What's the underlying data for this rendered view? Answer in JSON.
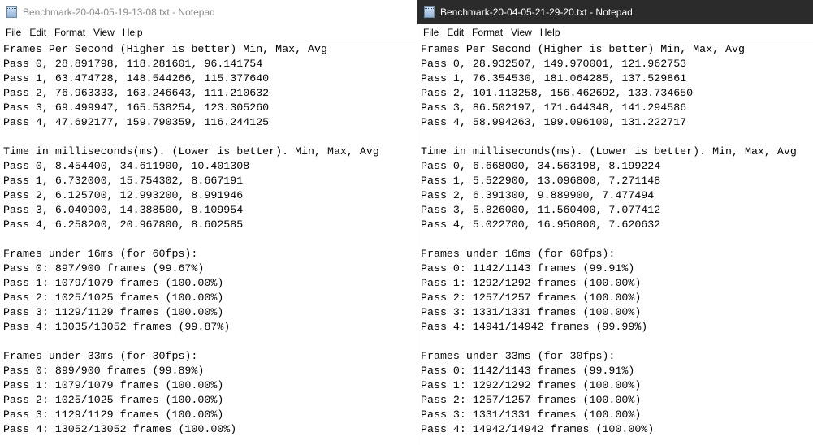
{
  "windows": [
    {
      "title": "Benchmark-20-04-05-19-13-08.txt - Notepad",
      "active": false,
      "menu": [
        "File",
        "Edit",
        "Format",
        "View",
        "Help"
      ],
      "lines": [
        "Frames Per Second (Higher is better) Min, Max, Avg",
        "Pass 0, 28.891798, 118.281601, 96.141754",
        "Pass 1, 63.474728, 148.544266, 115.377640",
        "Pass 2, 76.963333, 163.246643, 111.210632",
        "Pass 3, 69.499947, 165.538254, 123.305260",
        "Pass 4, 47.692177, 159.790359, 116.244125",
        "",
        "Time in milliseconds(ms). (Lower is better). Min, Max, Avg",
        "Pass 0, 8.454400, 34.611900, 10.401308",
        "Pass 1, 6.732000, 15.754302, 8.667191",
        "Pass 2, 6.125700, 12.993200, 8.991946",
        "Pass 3, 6.040900, 14.388500, 8.109954",
        "Pass 4, 6.258200, 20.967800, 8.602585",
        "",
        "Frames under 16ms (for 60fps):",
        "Pass 0: 897/900 frames (99.67%)",
        "Pass 1: 1079/1079 frames (100.00%)",
        "Pass 2: 1025/1025 frames (100.00%)",
        "Pass 3: 1129/1129 frames (100.00%)",
        "Pass 4: 13035/13052 frames (99.87%)",
        "",
        "Frames under 33ms (for 30fps):",
        "Pass 0: 899/900 frames (99.89%)",
        "Pass 1: 1079/1079 frames (100.00%)",
        "Pass 2: 1025/1025 frames (100.00%)",
        "Pass 3: 1129/1129 frames (100.00%)",
        "Pass 4: 13052/13052 frames (100.00%)"
      ]
    },
    {
      "title": "Benchmark-20-04-05-21-29-20.txt - Notepad",
      "active": true,
      "menu": [
        "File",
        "Edit",
        "Format",
        "View",
        "Help"
      ],
      "lines": [
        "Frames Per Second (Higher is better) Min, Max, Avg",
        "Pass 0, 28.932507, 149.970001, 121.962753",
        "Pass 1, 76.354530, 181.064285, 137.529861",
        "Pass 2, 101.113258, 156.462692, 133.734650",
        "Pass 3, 86.502197, 171.644348, 141.294586",
        "Pass 4, 58.994263, 199.096100, 131.222717",
        "",
        "Time in milliseconds(ms). (Lower is better). Min, Max, Avg",
        "Pass 0, 6.668000, 34.563198, 8.199224",
        "Pass 1, 5.522900, 13.096800, 7.271148",
        "Pass 2, 6.391300, 9.889900, 7.477494",
        "Pass 3, 5.826000, 11.560400, 7.077412",
        "Pass 4, 5.022700, 16.950800, 7.620632",
        "",
        "Frames under 16ms (for 60fps):",
        "Pass 0: 1142/1143 frames (99.91%)",
        "Pass 1: 1292/1292 frames (100.00%)",
        "Pass 2: 1257/1257 frames (100.00%)",
        "Pass 3: 1331/1331 frames (100.00%)",
        "Pass 4: 14941/14942 frames (99.99%)",
        "",
        "Frames under 33ms (for 30fps):",
        "Pass 0: 1142/1143 frames (99.91%)",
        "Pass 1: 1292/1292 frames (100.00%)",
        "Pass 2: 1257/1257 frames (100.00%)",
        "Pass 3: 1331/1331 frames (100.00%)",
        "Pass 4: 14942/14942 frames (100.00%)"
      ]
    }
  ]
}
